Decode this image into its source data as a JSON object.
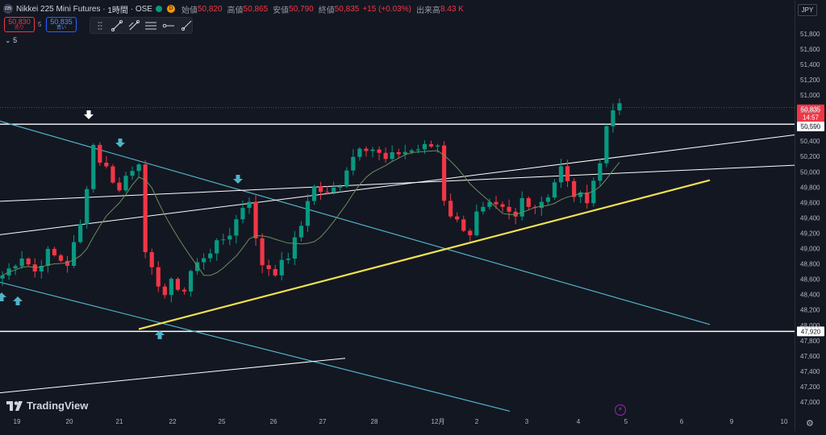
{
  "header": {
    "symbol_logo": "225",
    "symbol": "Nikkei 225 Mini Futures",
    "interval": "1時間",
    "exchange": "OSE",
    "badge_d": "D",
    "open_label": "始値",
    "open": "50,820",
    "high_label": "高値",
    "high": "50,865",
    "low_label": "安値",
    "low": "50,790",
    "close_label": "終値",
    "close": "50,835",
    "change": "+15 (+0.03%)",
    "volume_label": "出来高",
    "volume": "8.43 K"
  },
  "trade": {
    "sell_price": "50,830",
    "sell_label": "売り",
    "spread": "5",
    "buy_price": "50,835",
    "buy_label": "買い"
  },
  "interval_dropdown": "5",
  "currency": "JPY",
  "brand": "TradingView",
  "toolbar_icons": [
    "trend-line-icon",
    "drag-handle-icon",
    "parallel-channel-icon",
    "horizontal-ray-icon",
    "ray-icon"
  ],
  "colors": {
    "background": "#131722",
    "up": "#089981",
    "down": "#f23645",
    "teal_line": "#4fb3c8",
    "yellow_line": "#f0e050",
    "ma_line": "#6b8e5a",
    "white_line": "#ffffff"
  },
  "chart_data": {
    "type": "candlestick",
    "y_ticks": [
      47000,
      47200,
      47400,
      47600,
      47800,
      48000,
      48200,
      48400,
      48600,
      48800,
      49000,
      49200,
      49400,
      49600,
      49800,
      50000,
      50200,
      50400,
      50600,
      50800,
      51000,
      51200,
      51400,
      51600,
      51800
    ],
    "y_tick_labels": [
      "47,000",
      "47,200",
      "47,400",
      "47,600",
      "47,800",
      "48,000",
      "48,200",
      "48,400",
      "48,600",
      "48,800",
      "49,000",
      "49,200",
      "49,400",
      "49,600",
      "49,800",
      "50,000",
      "50,200",
      "50,400",
      "50,600",
      "50,800",
      "51,000",
      "51,200",
      "51,400",
      "51,600",
      "51,800"
    ],
    "ylim": [
      46900,
      51950
    ],
    "x_labels": [
      "19",
      "20",
      "21",
      "22",
      "25",
      "26",
      "27",
      "28",
      "12月",
      "2",
      "3",
      "4",
      "5",
      "6",
      "9",
      "10"
    ],
    "price_markers": [
      {
        "label": "50,835",
        "sub": "14:57",
        "value": 50835,
        "style": "current"
      },
      {
        "label": "50,590",
        "value": 50590,
        "style": "level"
      },
      {
        "label": "47,920",
        "value": 47920,
        "style": "level"
      }
    ],
    "horizontal_levels": [
      50590,
      47920
    ],
    "close_path": [
      [
        0,
        48650
      ],
      [
        3,
        48900
      ],
      [
        5,
        48700
      ],
      [
        7,
        48950
      ],
      [
        10,
        48800
      ],
      [
        12,
        49300
      ],
      [
        14,
        50350
      ],
      [
        15,
        50150
      ],
      [
        16,
        50050
      ],
      [
        18,
        49750
      ],
      [
        19,
        49950
      ],
      [
        21,
        50150
      ],
      [
        22,
        48900
      ],
      [
        23,
        48700
      ],
      [
        25,
        48400
      ],
      [
        26,
        48550
      ],
      [
        28,
        48450
      ],
      [
        29,
        48700
      ],
      [
        31,
        48900
      ],
      [
        33,
        49050
      ],
      [
        35,
        49200
      ],
      [
        37,
        49550
      ],
      [
        38,
        49650
      ],
      [
        39,
        49100
      ],
      [
        40,
        48800
      ],
      [
        42,
        48700
      ],
      [
        44,
        48900
      ],
      [
        46,
        49300
      ],
      [
        47,
        49650
      ],
      [
        48,
        49800
      ],
      [
        50,
        49700
      ],
      [
        52,
        49850
      ],
      [
        53,
        50050
      ],
      [
        55,
        50350
      ],
      [
        57,
        50300
      ],
      [
        59,
        50150
      ],
      [
        61,
        50250
      ],
      [
        63,
        50280
      ],
      [
        65,
        50320
      ],
      [
        67,
        50350
      ],
      [
        68,
        49650
      ],
      [
        69,
        49450
      ],
      [
        70,
        49350
      ],
      [
        72,
        49200
      ],
      [
        73,
        49450
      ],
      [
        75,
        49550
      ],
      [
        77,
        49500
      ],
      [
        79,
        49400
      ],
      [
        80,
        49650
      ],
      [
        82,
        49550
      ],
      [
        84,
        49700
      ],
      [
        86,
        50050
      ],
      [
        87,
        49850
      ],
      [
        88,
        49700
      ],
      [
        90,
        49650
      ],
      [
        91,
        49900
      ],
      [
        92,
        50100
      ],
      [
        93,
        50600
      ],
      [
        94,
        50850
      ],
      [
        95,
        50835
      ]
    ]
  }
}
